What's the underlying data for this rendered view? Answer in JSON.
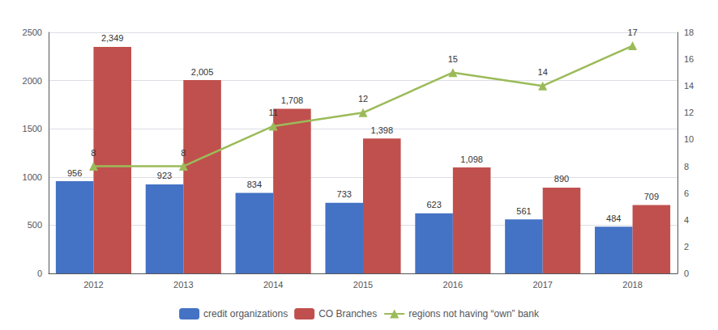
{
  "chart_data": {
    "type": "bar",
    "categories": [
      "2012",
      "2013",
      "2014",
      "2015",
      "2016",
      "2017",
      "2018"
    ],
    "series": [
      {
        "name": "credit organizations",
        "type": "bar",
        "color": "#4472C4",
        "values": [
          956,
          923,
          834,
          733,
          623,
          561,
          484
        ]
      },
      {
        "name": "CO Branches",
        "type": "bar",
        "color": "#C0504D",
        "values": [
          2349,
          2005,
          1708,
          1398,
          1098,
          890,
          709
        ],
        "value_labels": [
          "2,349",
          "2,005",
          "1,708",
          "1,398",
          "1,098",
          "890",
          "709"
        ]
      },
      {
        "name": "regions not having “own” bank",
        "type": "line",
        "color": "#9BBB59",
        "marker": "triangle",
        "axis": "y2",
        "values": [
          8,
          8,
          11,
          12,
          15,
          14,
          17
        ]
      }
    ],
    "ylim": [
      0,
      2500
    ],
    "yticks": [
      0,
      500,
      1000,
      1500,
      2000,
      2500
    ],
    "y2lim": [
      0,
      18
    ],
    "y2ticks": [
      0,
      2,
      4,
      6,
      8,
      10,
      12,
      14,
      16,
      18
    ],
    "grid": true,
    "legend": "bottom",
    "data_labels": true
  }
}
